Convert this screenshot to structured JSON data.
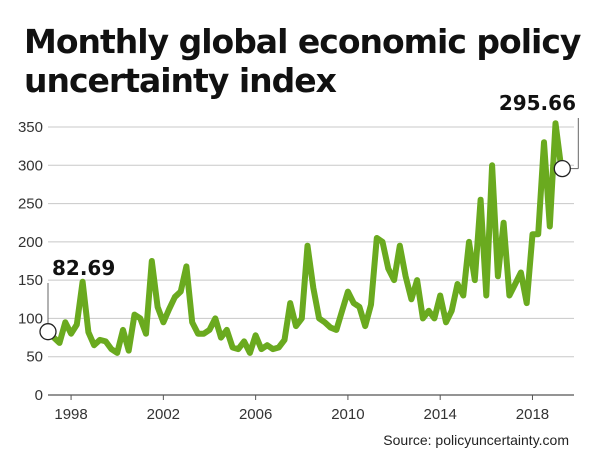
{
  "chart_data": {
    "type": "line",
    "title": "Monthly global economic policy uncertainty index",
    "source": "Source: policyuncertainty.com",
    "xlabel": "",
    "ylabel": "",
    "xlim": [
      1997.0,
      2019.8
    ],
    "ylim": [
      0,
      350
    ],
    "y_ticks": [
      0,
      50,
      100,
      150,
      200,
      250,
      300,
      350
    ],
    "x_ticks": [
      1998,
      2002,
      2006,
      2010,
      2014,
      2018
    ],
    "grid": true,
    "line_color": "#6aaa1f",
    "annotations": [
      {
        "label": "82.69",
        "x": 1997.0,
        "y": 82.69
      },
      {
        "label": "295.66",
        "x": 2019.25,
        "y": 295.66
      }
    ],
    "series": [
      {
        "x": [
          1997.0,
          1997.25,
          1997.5,
          1997.75,
          1998.0,
          1998.25,
          1998.5,
          1998.75,
          1999.0,
          1999.25,
          1999.5,
          1999.75,
          2000.0,
          2000.25,
          2000.5,
          2000.75,
          2001.0,
          2001.25,
          2001.5,
          2001.75,
          2002.0,
          2002.25,
          2002.5,
          2002.75,
          2003.0,
          2003.25,
          2003.5,
          2003.75,
          2004.0,
          2004.25,
          2004.5,
          2004.75,
          2005.0,
          2005.25,
          2005.5,
          2005.75,
          2006.0,
          2006.25,
          2006.5,
          2006.75,
          2007.0,
          2007.25,
          2007.5,
          2007.75,
          2008.0,
          2008.25,
          2008.5,
          2008.75,
          2009.0,
          2009.25,
          2009.5,
          2009.75,
          2010.0,
          2010.25,
          2010.5,
          2010.75,
          2011.0,
          2011.25,
          2011.5,
          2011.75,
          2012.0,
          2012.25,
          2012.5,
          2012.75,
          2013.0,
          2013.25,
          2013.5,
          2013.75,
          2014.0,
          2014.25,
          2014.5,
          2014.75,
          2015.0,
          2015.25,
          2015.5,
          2015.75,
          2016.0,
          2016.25,
          2016.5,
          2016.75,
          2017.0,
          2017.25,
          2017.5,
          2017.75,
          2018.0,
          2018.25,
          2018.5,
          2018.75,
          2019.0,
          2019.25
        ],
        "y": [
          82.69,
          75,
          68,
          95,
          80,
          92,
          148,
          82,
          65,
          72,
          70,
          60,
          55,
          85,
          58,
          105,
          100,
          80,
          175,
          115,
          95,
          112,
          128,
          135,
          168,
          95,
          80,
          80,
          85,
          100,
          75,
          85,
          62,
          60,
          70,
          55,
          78,
          60,
          65,
          60,
          62,
          72,
          120,
          90,
          100,
          195,
          140,
          100,
          95,
          88,
          85,
          110,
          135,
          120,
          115,
          90,
          118,
          205,
          200,
          165,
          150,
          195,
          155,
          125,
          150,
          100,
          110,
          100,
          130,
          95,
          110,
          145,
          130,
          200,
          150,
          255,
          130,
          300,
          155,
          225,
          130,
          145,
          160,
          120,
          210,
          210,
          330,
          220,
          355,
          295.66
        ]
      }
    ]
  }
}
